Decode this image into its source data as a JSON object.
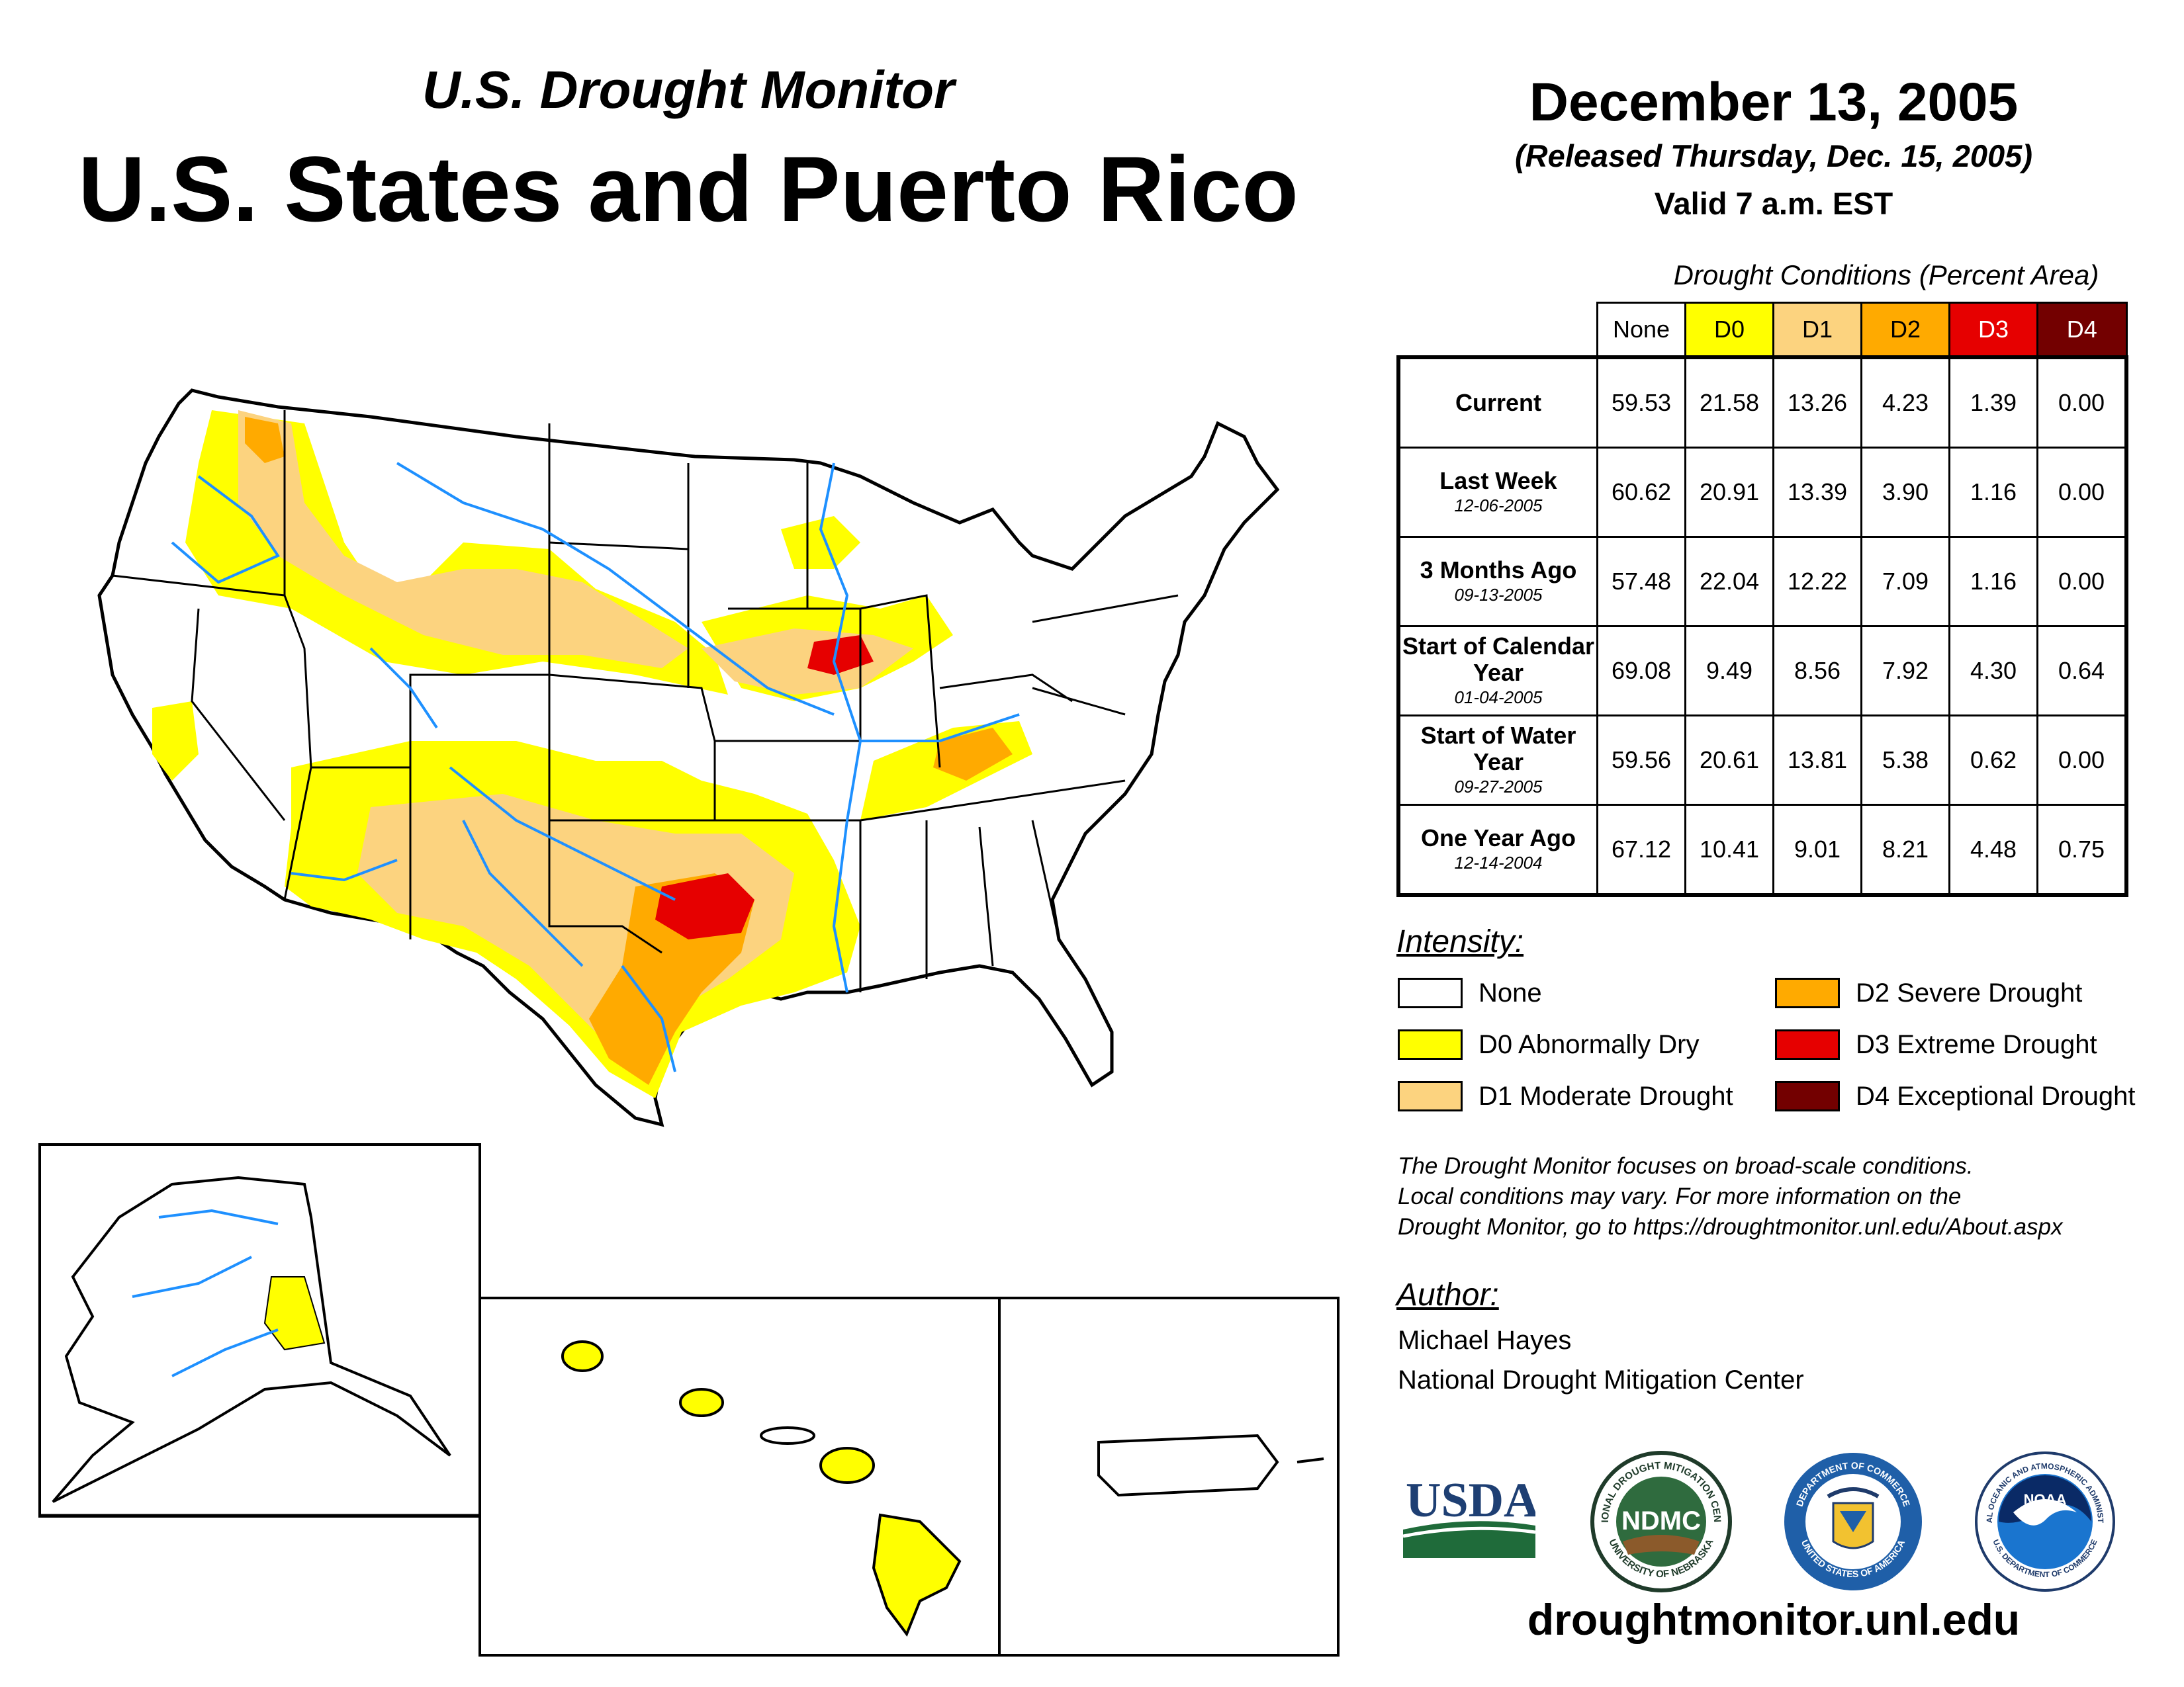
{
  "header": {
    "subtitle": "U.S. Drought Monitor",
    "title": "U.S. States and Puerto Rico",
    "date": "December 13, 2005",
    "released": "(Released Thursday, Dec. 15, 2005)",
    "valid": "Valid 7 a.m. EST"
  },
  "table": {
    "title": "Drought Conditions (Percent Area)",
    "columns": [
      "None",
      "D0",
      "D1",
      "D2",
      "D3",
      "D4"
    ],
    "rows": [
      {
        "label": "Current",
        "sub": "",
        "values": [
          "59.53",
          "21.58",
          "13.26",
          "4.23",
          "1.39",
          "0.00"
        ]
      },
      {
        "label": "Last Week",
        "sub": "12-06-2005",
        "values": [
          "60.62",
          "20.91",
          "13.39",
          "3.90",
          "1.16",
          "0.00"
        ]
      },
      {
        "label": "3 Months Ago",
        "sub": "09-13-2005",
        "values": [
          "57.48",
          "22.04",
          "12.22",
          "7.09",
          "1.16",
          "0.00"
        ]
      },
      {
        "label": "Start of Calendar Year",
        "sub": "01-04-2005",
        "values": [
          "69.08",
          "9.49",
          "8.56",
          "7.92",
          "4.30",
          "0.64"
        ]
      },
      {
        "label": "Start of Water Year",
        "sub": "09-27-2005",
        "values": [
          "59.56",
          "20.61",
          "13.81",
          "5.38",
          "0.62",
          "0.00"
        ]
      },
      {
        "label": "One Year Ago",
        "sub": "12-14-2004",
        "values": [
          "67.12",
          "10.41",
          "9.01",
          "8.21",
          "4.48",
          "0.75"
        ]
      }
    ]
  },
  "legend": {
    "title": "Intensity:",
    "items": [
      {
        "label": "None",
        "color": "#ffffff"
      },
      {
        "label": "D0 Abnormally Dry",
        "color": "#ffff00"
      },
      {
        "label": "D1 Moderate Drought",
        "color": "#fcd37f"
      },
      {
        "label": "D2 Severe Drought",
        "color": "#ffaa00"
      },
      {
        "label": "D3 Extreme Drought",
        "color": "#e60000"
      },
      {
        "label": "D4 Exceptional Drought",
        "color": "#730000"
      }
    ]
  },
  "note": {
    "line1": "The Drought Monitor focuses on broad-scale conditions.",
    "line2": "Local conditions may vary. For more information on the",
    "line3": "Drought Monitor, go to https://droughtmonitor.unl.edu/About.aspx"
  },
  "author": {
    "title": "Author:",
    "name": "Michael Hayes",
    "org": "National Drought Mitigation Center"
  },
  "logos": {
    "usda": "USDA",
    "ndmc": "NDMC",
    "ndmc_ring_top": "NATIONAL DROUGHT MITIGATION CENTER",
    "ndmc_ring_bottom": "UNIVERSITY OF NEBRASKA",
    "doc_ring_top": "DEPARTMENT OF COMMERCE",
    "doc_ring_bottom": "UNITED STATES OF AMERICA",
    "noaa": "NOAA",
    "noaa_ring_top": "NATIONAL OCEANIC AND ATMOSPHERIC ADMINISTRATION",
    "noaa_ring_bottom": "U.S. DEPARTMENT OF COMMERCE"
  },
  "footer": {
    "url": "droughtmonitor.unl.edu"
  }
}
